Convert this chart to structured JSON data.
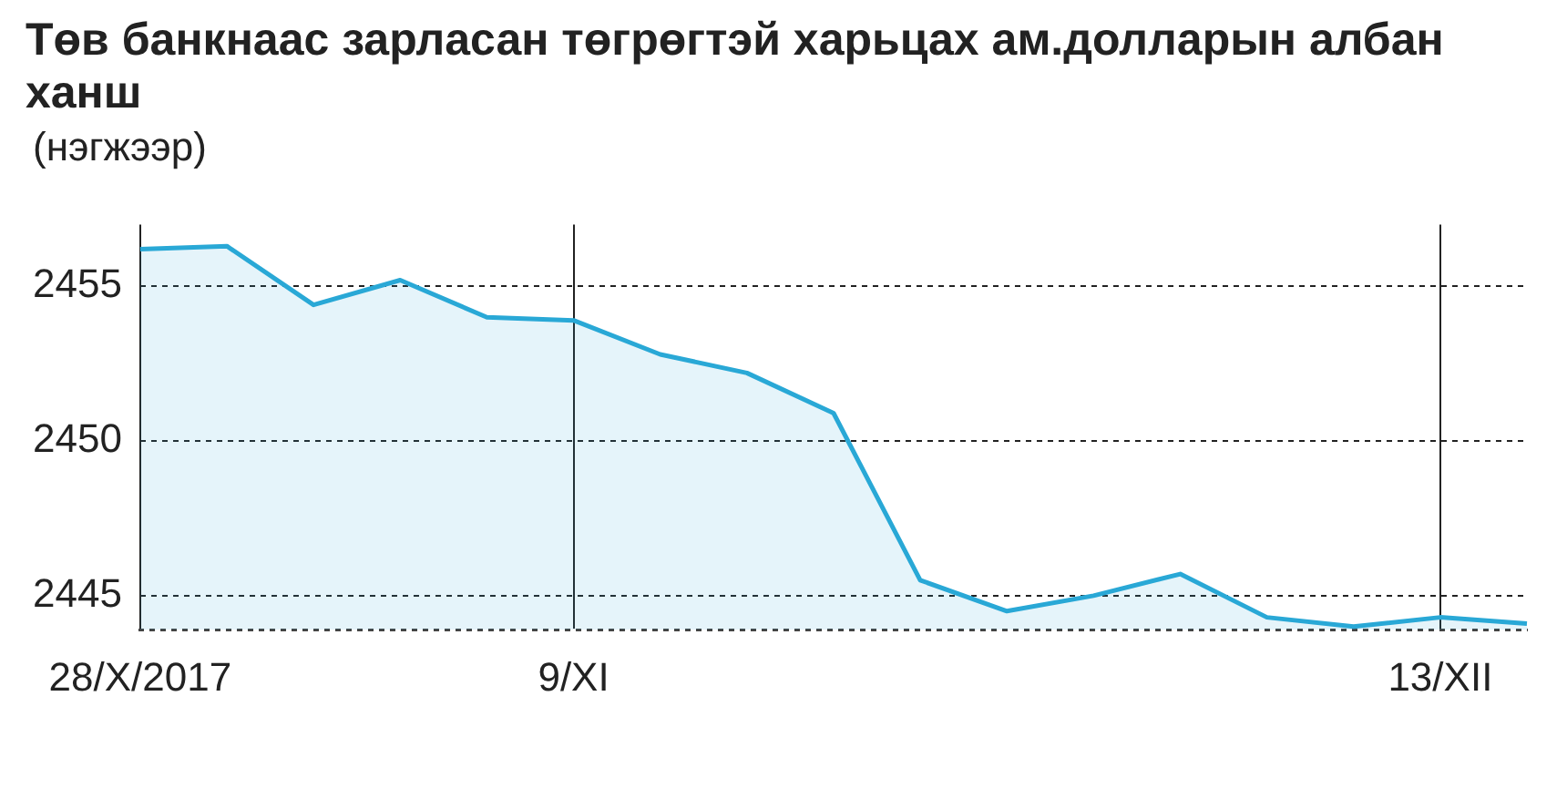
{
  "chart_data": {
    "type": "area",
    "title": "Төв банкнаас зарласан төгрөгтэй харьцах ам.долларын албан ханш",
    "subtitle": "(нэгжээр)",
    "categories": [
      "28/X/2017",
      null,
      null,
      null,
      null,
      "9/XI",
      null,
      null,
      null,
      null,
      null,
      null,
      null,
      null,
      null,
      "13/XII",
      null
    ],
    "series": [
      {
        "color": "#29a8d6",
        "values": [
          2456.2,
          2456.3,
          2454.4,
          2455.2,
          2454.0,
          2453.9,
          2452.8,
          2452.2,
          2450.9,
          2445.5,
          2444.5,
          2445.0,
          2445.7,
          2444.3,
          2444.0,
          2444.3,
          2444.1
        ]
      }
    ],
    "ylim": [
      2443.9,
      2457
    ],
    "yticks": [
      2445,
      2450,
      2455
    ],
    "grid": true
  }
}
